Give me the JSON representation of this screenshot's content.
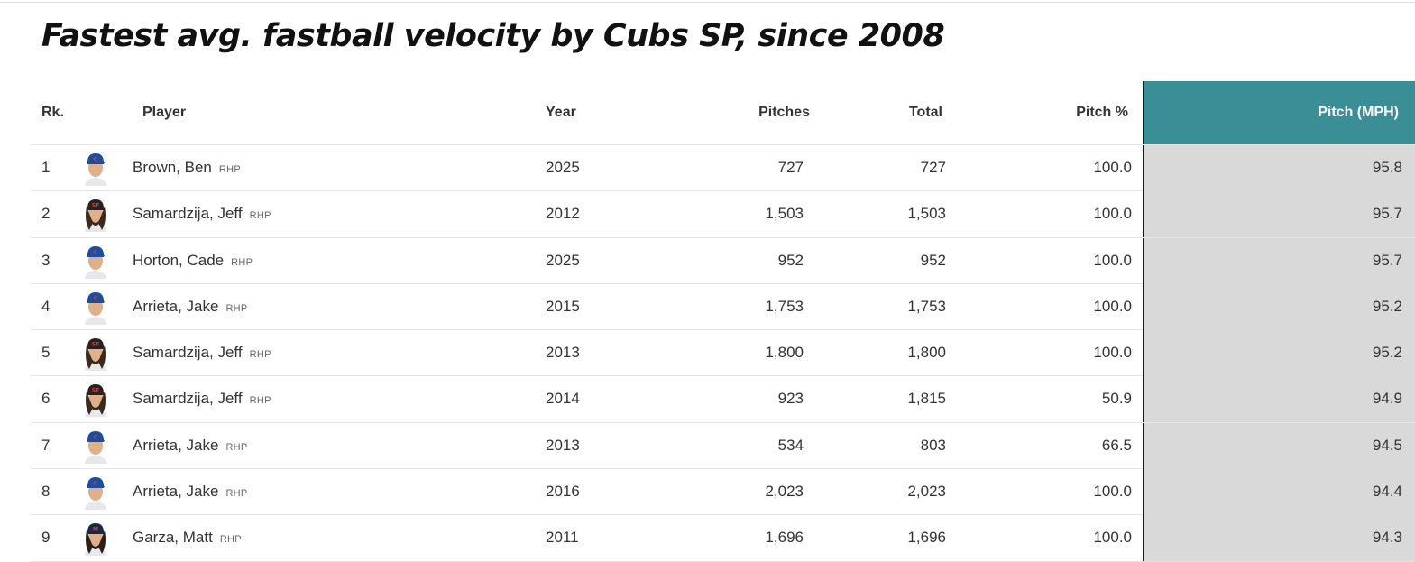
{
  "title": "Fastest avg. fastball velocity by Cubs SP, since 2008",
  "headers": {
    "rank": "Rk.",
    "player": "Player",
    "year": "Year",
    "pitches": "Pitches",
    "total": "Total",
    "pitch_pct": "Pitch %",
    "pitch_mph": "Pitch (MPH)"
  },
  "colors": {
    "selected_header": "#3a8f97",
    "selected_column": "#d9d9d9",
    "cubs_blue": "#1b4ea0",
    "giants_black": "#2a2020",
    "brewers_navy": "#152a4a"
  },
  "rows": [
    {
      "rank": "1",
      "player": "Brown, Ben",
      "hand": "RHP",
      "year": "2025",
      "pitches": "727",
      "total": "727",
      "pitch_pct": "100.0",
      "mph": "95.8",
      "avatar": "cubs-player-headshot-icon"
    },
    {
      "rank": "2",
      "player": "Samardzija, Jeff",
      "hand": "RHP",
      "year": "2012",
      "pitches": "1,503",
      "total": "1,503",
      "pitch_pct": "100.0",
      "mph": "95.7",
      "avatar": "giants-player-headshot-icon"
    },
    {
      "rank": "3",
      "player": "Horton, Cade",
      "hand": "RHP",
      "year": "2025",
      "pitches": "952",
      "total": "952",
      "pitch_pct": "100.0",
      "mph": "95.7",
      "avatar": "cubs-player-headshot-icon"
    },
    {
      "rank": "4",
      "player": "Arrieta, Jake",
      "hand": "RHP",
      "year": "2015",
      "pitches": "1,753",
      "total": "1,753",
      "pitch_pct": "100.0",
      "mph": "95.2",
      "avatar": "cubs-player-headshot-icon"
    },
    {
      "rank": "5",
      "player": "Samardzija, Jeff",
      "hand": "RHP",
      "year": "2013",
      "pitches": "1,800",
      "total": "1,800",
      "pitch_pct": "100.0",
      "mph": "95.2",
      "avatar": "giants-player-headshot-icon"
    },
    {
      "rank": "6",
      "player": "Samardzija, Jeff",
      "hand": "RHP",
      "year": "2014",
      "pitches": "923",
      "total": "1,815",
      "pitch_pct": "50.9",
      "mph": "94.9",
      "avatar": "giants-player-headshot-icon"
    },
    {
      "rank": "7",
      "player": "Arrieta, Jake",
      "hand": "RHP",
      "year": "2013",
      "pitches": "534",
      "total": "803",
      "pitch_pct": "66.5",
      "mph": "94.5",
      "avatar": "cubs-player-headshot-icon"
    },
    {
      "rank": "8",
      "player": "Arrieta, Jake",
      "hand": "RHP",
      "year": "2016",
      "pitches": "2,023",
      "total": "2,023",
      "pitch_pct": "100.0",
      "mph": "94.4",
      "avatar": "cubs-player-headshot-icon"
    },
    {
      "rank": "9",
      "player": "Garza, Matt",
      "hand": "RHP",
      "year": "2011",
      "pitches": "1,696",
      "total": "1,696",
      "pitch_pct": "100.0",
      "mph": "94.3",
      "avatar": "brewers-player-headshot-icon"
    }
  ]
}
